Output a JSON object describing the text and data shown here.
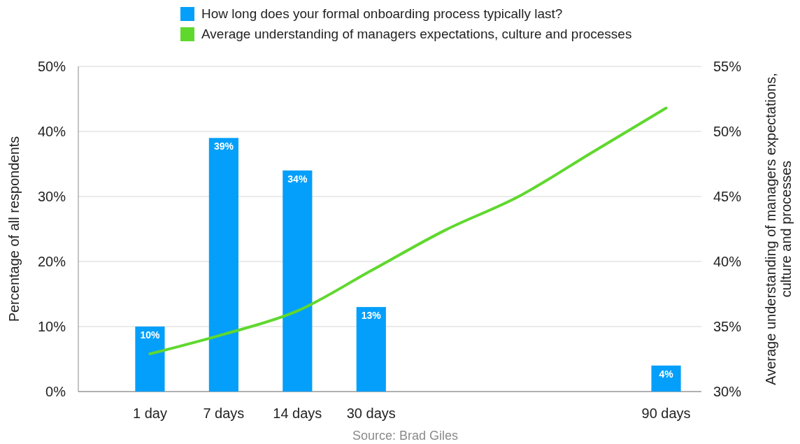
{
  "chart_data": {
    "type": "bar",
    "categories": [
      "1 day",
      "7 days",
      "14 days",
      "30 days",
      null,
      null,
      null,
      "90 days"
    ],
    "series": [
      {
        "name": "How long does your formal onboarding process typically last?",
        "color": "#049ffa",
        "values": [
          10,
          39,
          34,
          13,
          null,
          null,
          null,
          4
        ],
        "value_labels": [
          "10%",
          "39%",
          "34%",
          "13%",
          null,
          null,
          null,
          "4%"
        ]
      },
      {
        "name": "Average understanding of managers expectations, culture and processes",
        "type": "line",
        "axis": "y2",
        "color": "#5fd82e",
        "values": [
          32.9,
          34.4,
          36.2,
          39.3,
          42.4,
          45.0,
          48.4,
          51.8
        ]
      }
    ],
    "ylabel": "Percentage of all respondents",
    "y2label": "Average understanding of managers expectations, culture and processes",
    "ylim": [
      0,
      50
    ],
    "yticks": [
      {
        "value": 0,
        "label": "0%"
      },
      {
        "value": 10,
        "label": "10%"
      },
      {
        "value": 20,
        "label": "20%"
      },
      {
        "value": 30,
        "label": "30%"
      },
      {
        "value": 40,
        "label": "40%"
      },
      {
        "value": 50,
        "label": "50%"
      }
    ],
    "y2lim": [
      30,
      55
    ],
    "y2ticks": [
      {
        "value": 30,
        "label": "30%"
      },
      {
        "value": 35,
        "label": "35%"
      },
      {
        "value": 40,
        "label": "40%"
      },
      {
        "value": 45,
        "label": "45%"
      },
      {
        "value": 50,
        "label": "50%"
      },
      {
        "value": 55,
        "label": "55%"
      }
    ],
    "grid": "y",
    "legend": "top",
    "marker": "none",
    "line_style": "solid",
    "annotations": [
      "Source: Brad Giles"
    ]
  }
}
